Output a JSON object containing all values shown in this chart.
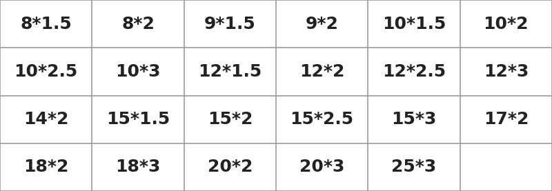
{
  "rows": [
    [
      "8*1.5",
      "8*2",
      "9*1.5",
      "9*2",
      "10*1.5",
      "10*2"
    ],
    [
      "10*2.5",
      "10*3",
      "12*1.5",
      "12*2",
      "12*2.5",
      "12*3"
    ],
    [
      "14*2",
      "15*1.5",
      "15*2",
      "15*2.5",
      "15*3",
      "17*2"
    ],
    [
      "18*2",
      "18*3",
      "20*2",
      "20*3",
      "25*3",
      ""
    ]
  ],
  "n_cols": 6,
  "n_rows": 4,
  "bg_color": "#ffffff",
  "text_color": "#222222",
  "grid_color": "#999999",
  "font_size": 18,
  "font_weight": "bold",
  "fig_width": 8.0,
  "fig_height": 2.77,
  "dpi": 100
}
